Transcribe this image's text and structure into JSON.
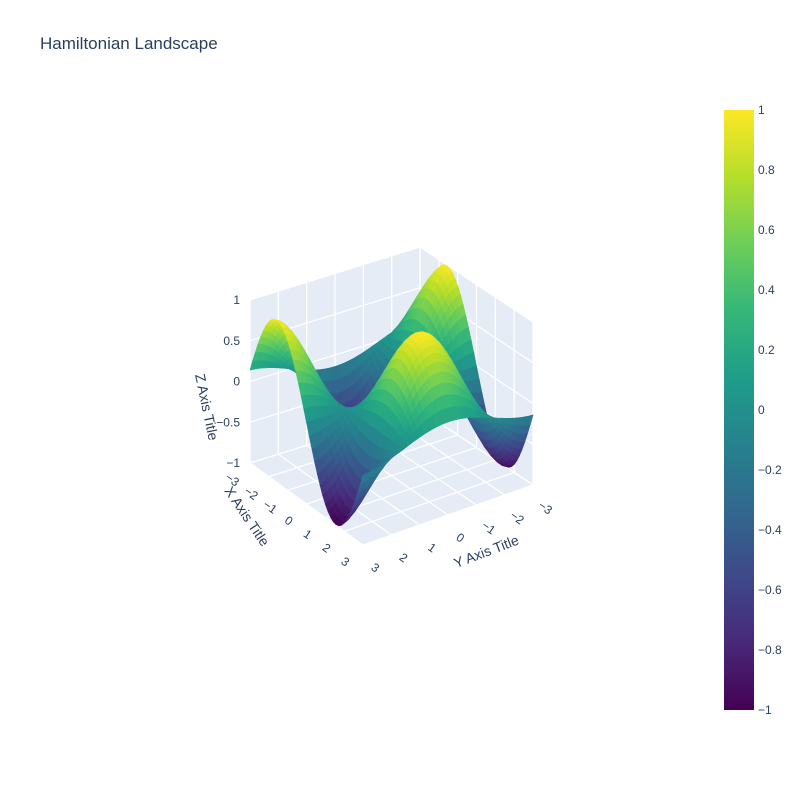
{
  "chart_data": {
    "type": "surface",
    "title": "Hamiltonian Landscape",
    "xlabel": "X Axis Title",
    "ylabel": "Y Axis Title",
    "zlabel": "Z Axis Title",
    "function": "sin(x)*cos(y)",
    "x_range": [
      -3,
      3
    ],
    "y_range": [
      -3,
      3
    ],
    "z_range": [
      -1,
      1
    ],
    "x_ticks": [
      {
        "value": -3,
        "label": "−3"
      },
      {
        "value": -2,
        "label": "−2"
      },
      {
        "value": -1,
        "label": "−1"
      },
      {
        "value": 0,
        "label": "0"
      },
      {
        "value": 1,
        "label": "1"
      },
      {
        "value": 2,
        "label": "2"
      },
      {
        "value": 3,
        "label": "3"
      }
    ],
    "y_ticks": [
      {
        "value": -3,
        "label": "−3"
      },
      {
        "value": -2,
        "label": "−2"
      },
      {
        "value": -1,
        "label": "−1"
      },
      {
        "value": 0,
        "label": "0"
      },
      {
        "value": 1,
        "label": "1"
      },
      {
        "value": 2,
        "label": "2"
      },
      {
        "value": 3,
        "label": "3"
      }
    ],
    "z_ticks": [
      {
        "value": -1,
        "label": "−1"
      },
      {
        "value": -0.5,
        "label": "−0.5"
      },
      {
        "value": 0,
        "label": "0"
      },
      {
        "value": 0.5,
        "label": "0.5"
      },
      {
        "value": 1,
        "label": "1"
      }
    ],
    "colorscale": "Viridis",
    "colorscale_stops": [
      "#440154",
      "#482878",
      "#3e4989",
      "#31688e",
      "#26828e",
      "#1f9e89",
      "#35b779",
      "#6ece58",
      "#b5de2b",
      "#fde725"
    ],
    "colorbar": {
      "range": [
        -1,
        1
      ],
      "ticks": [
        {
          "value": 1,
          "label": "1"
        },
        {
          "value": 0.8,
          "label": "0.8"
        },
        {
          "value": 0.6,
          "label": "0.6"
        },
        {
          "value": 0.4,
          "label": "0.4"
        },
        {
          "value": 0.2,
          "label": "0.2"
        },
        {
          "value": 0,
          "label": "0"
        },
        {
          "value": -0.2,
          "label": "−0.2"
        },
        {
          "value": -0.4,
          "label": "−0.4"
        },
        {
          "value": -0.6,
          "label": "−0.6"
        },
        {
          "value": -0.8,
          "label": "−0.8"
        },
        {
          "value": -1,
          "label": "−1"
        }
      ]
    },
    "grid": true,
    "background_color": "#e5ecf6"
  }
}
